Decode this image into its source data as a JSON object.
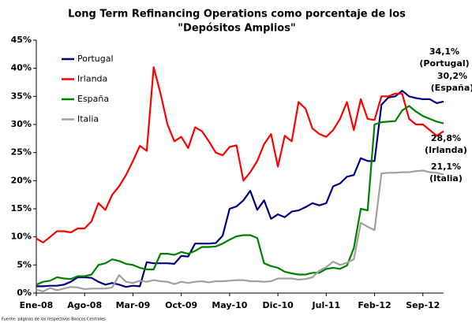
{
  "chart_data": {
    "type": "line",
    "title": [
      "Long Term Refinancing Operations como porcentaje de los",
      "\"Depósitos Amplios\""
    ],
    "source": "Fuente: páginas de los respectivos Bancos Centrales",
    "categories": [
      "Ene-08",
      null,
      null,
      null,
      null,
      null,
      null,
      "Ago-08",
      null,
      null,
      null,
      null,
      null,
      null,
      "Mar-09",
      null,
      null,
      null,
      null,
      null,
      null,
      "Oct-09",
      null,
      null,
      null,
      null,
      null,
      null,
      "May-10",
      null,
      null,
      null,
      null,
      null,
      null,
      "Dic-10",
      null,
      null,
      null,
      null,
      null,
      null,
      "Jul-11",
      null,
      null,
      null,
      null,
      null,
      null,
      "Feb-12",
      null,
      null,
      null,
      null,
      null,
      null,
      "Sep-12",
      null,
      null,
      null
    ],
    "series": [
      {
        "name": "Portugal",
        "color": "#000080",
        "values": [
          1.2,
          1.2,
          1.3,
          1.3,
          1.5,
          2.0,
          2.8,
          2.8,
          2.7,
          2.0,
          1.5,
          1.8,
          1.5,
          1.1,
          1.3,
          1.2,
          5.5,
          5.3,
          5.3,
          5.3,
          5.2,
          6.6,
          6.5,
          8.8,
          8.8,
          8.8,
          8.9,
          10.2,
          15.0,
          15.4,
          16.5,
          18.2,
          14.8,
          16.5,
          13.2,
          14.0,
          13.5,
          14.5,
          14.7,
          15.3,
          16.0,
          15.6,
          16.0,
          19.0,
          19.5,
          20.7,
          21.0,
          24.0,
          23.5,
          23.5,
          33.5,
          34.8,
          35.0,
          36.0,
          35.0,
          34.7,
          34.5,
          34.5,
          33.8,
          34.1
        ]
      },
      {
        "name": "Irlanda",
        "color": "#ff0000",
        "values": [
          9.7,
          9.0,
          10.0,
          11.0,
          11.0,
          10.8,
          11.5,
          11.5,
          12.8,
          16.0,
          14.8,
          17.5,
          19.0,
          21.0,
          23.5,
          26.2,
          25.3,
          40.2,
          35.5,
          30.0,
          27.0,
          27.8,
          25.8,
          29.5,
          28.8,
          27.0,
          25.0,
          24.5,
          26.0,
          26.3,
          20.0,
          21.5,
          23.5,
          26.5,
          28.3,
          22.5,
          28.0,
          27.0,
          34.0,
          32.8,
          29.3,
          28.3,
          27.8,
          29.0,
          31.0,
          34.0,
          29.0,
          34.5,
          31.0,
          30.8,
          35.0,
          35.0,
          35.5,
          35.5,
          31.0,
          30.0,
          30.0,
          29.0,
          28.0,
          28.8
        ]
      },
      {
        "name": "España",
        "color": "#008000",
        "values": [
          1.5,
          2.0,
          2.2,
          2.8,
          2.6,
          2.5,
          3.0,
          3.0,
          3.3,
          5.0,
          5.3,
          6.0,
          5.7,
          5.2,
          5.0,
          4.5,
          4.2,
          4.2,
          7.0,
          7.0,
          6.8,
          7.3,
          7.0,
          7.5,
          8.2,
          8.2,
          8.3,
          8.8,
          9.5,
          10.1,
          10.3,
          10.3,
          9.8,
          5.3,
          4.8,
          4.5,
          3.8,
          3.5,
          3.3,
          3.3,
          3.6,
          3.6,
          4.3,
          4.5,
          4.3,
          4.9,
          8.0,
          15.0,
          14.7,
          30.0,
          30.4,
          30.5,
          30.6,
          32.5,
          33.3,
          32.3,
          31.5,
          31.0,
          30.5,
          30.2
        ]
      },
      {
        "name": "Italia",
        "color": "#a0a0a0",
        "values": [
          0.6,
          0.3,
          0.9,
          0.5,
          0.8,
          1.1,
          1.0,
          0.7,
          0.8,
          0.8,
          0.8,
          1.0,
          3.2,
          2.0,
          1.8,
          2.2,
          2.0,
          2.3,
          2.1,
          2.0,
          1.6,
          2.0,
          1.8,
          2.0,
          2.1,
          1.9,
          2.1,
          2.1,
          2.2,
          2.3,
          2.3,
          2.1,
          2.1,
          2.0,
          2.1,
          2.6,
          2.6,
          2.6,
          2.4,
          2.5,
          2.8,
          4.0,
          4.6,
          5.6,
          5.0,
          5.4,
          6.0,
          12.5,
          11.8,
          11.2,
          21.3,
          21.4,
          21.4,
          21.5,
          21.5,
          21.7,
          21.8,
          21.5,
          21.4,
          21.1
        ]
      }
    ],
    "annotations": [
      {
        "lines": [
          "34,1%",
          "(Portugal)"
        ]
      },
      {
        "lines": [
          "30,2%",
          "(España)"
        ]
      },
      {
        "lines": [
          "28,8%",
          "(Irlanda)"
        ]
      },
      {
        "lines": [
          "21,1%",
          "(Italia)"
        ]
      }
    ],
    "ylim": [
      0,
      45
    ],
    "yticks": [
      {
        "value": 0,
        "label": "0%"
      },
      {
        "value": 5,
        "label": "5%"
      },
      {
        "value": 10,
        "label": "10%"
      },
      {
        "value": 15,
        "label": "15%"
      },
      {
        "value": 20,
        "label": "20%"
      },
      {
        "value": 25,
        "label": "25%"
      },
      {
        "value": 30,
        "label": "30%"
      },
      {
        "value": 35,
        "label": "35%"
      },
      {
        "value": 40,
        "label": "40%"
      },
      {
        "value": 45,
        "label": "45%"
      }
    ],
    "grid": false,
    "legend": "upper left"
  }
}
